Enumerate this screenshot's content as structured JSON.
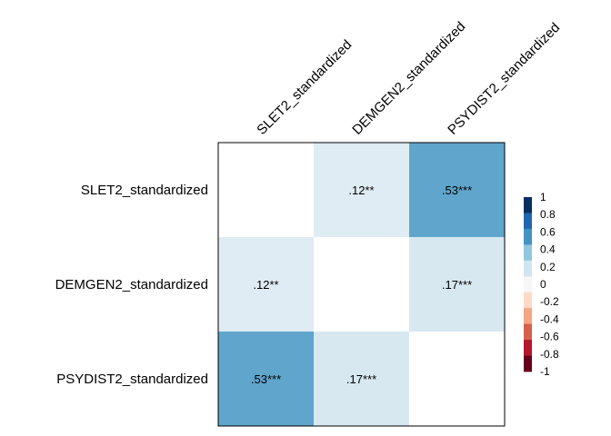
{
  "chart_data": {
    "type": "heatmap",
    "title": "",
    "variables": [
      "SLET2_standardized",
      "DEMGEN2_standardized",
      "PSYDIST2_standardized"
    ],
    "matrix": [
      [
        null,
        0.12,
        0.53
      ],
      [
        0.12,
        null,
        0.17
      ],
      [
        0.53,
        0.17,
        null
      ]
    ],
    "cell_labels": [
      [
        "",
        ".12**",
        ".53***"
      ],
      [
        ".12**",
        "",
        ".17***"
      ],
      [
        ".53***",
        ".17***",
        ""
      ]
    ],
    "colorbar": {
      "range": [
        -1,
        1
      ],
      "ticks": [
        "1",
        "0.8",
        "0.6",
        "0.4",
        "0.2",
        "0",
        "-0.2",
        "-0.4",
        "-0.6",
        "-0.8",
        "-1"
      ],
      "colors": [
        "#053061",
        "#2166ac",
        "#4393c3",
        "#92c5de",
        "#d1e5f0",
        "#f7f7f7",
        "#fddbc7",
        "#f4a582",
        "#d6604d",
        "#b2182b",
        "#67001f"
      ]
    },
    "legend_position": "right"
  }
}
